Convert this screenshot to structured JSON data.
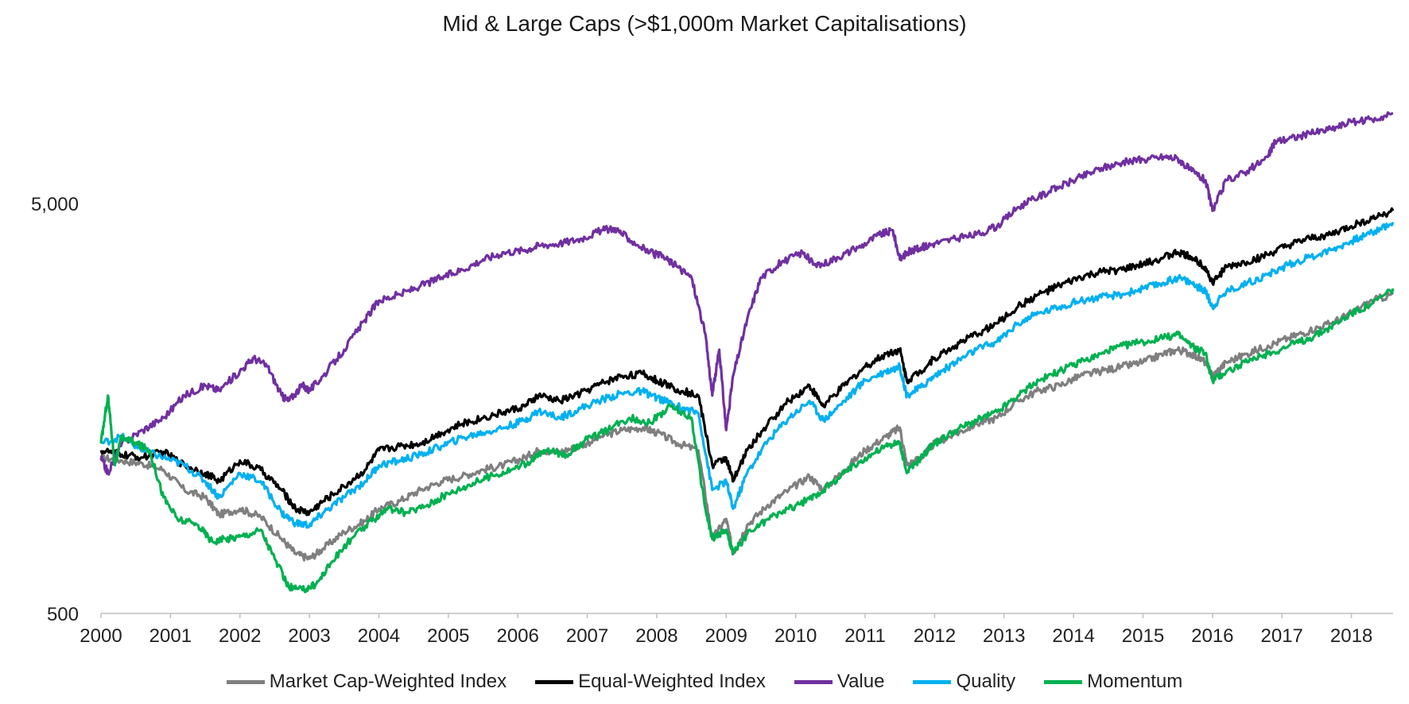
{
  "chart_data": {
    "type": "line",
    "title": "Mid & Large Caps (>$1,000m Market Capitalisations)",
    "xlabel": "",
    "ylabel": "",
    "y_scale": "log",
    "ylim": [
      500,
      12000
    ],
    "xlim": [
      2000,
      2018.6
    ],
    "x_ticks": [
      "2000",
      "2001",
      "2002",
      "2003",
      "2004",
      "2005",
      "2006",
      "2007",
      "2008",
      "2009",
      "2010",
      "2011",
      "2012",
      "2013",
      "2014",
      "2015",
      "2016",
      "2017",
      "2018"
    ],
    "y_ticks": [
      500,
      5000
    ],
    "y_tick_labels": [
      "500",
      "5,000"
    ],
    "grid": false,
    "legend_position": "bottom",
    "series": [
      {
        "name": "Market Cap-Weighted Index",
        "color": "#7f7f7f",
        "x": [
          2000.0,
          2000.3,
          2000.6,
          2000.9,
          2001.2,
          2001.5,
          2001.7,
          2002.0,
          2002.3,
          2002.6,
          2002.8,
          2003.0,
          2003.2,
          2003.5,
          2003.8,
          2004.0,
          2004.3,
          2004.6,
          2004.9,
          2005.2,
          2005.5,
          2005.8,
          2006.1,
          2006.3,
          2006.6,
          2006.9,
          2007.2,
          2007.5,
          2007.8,
          2008.0,
          2008.3,
          2008.6,
          2008.8,
          2009.0,
          2009.1,
          2009.3,
          2009.6,
          2009.9,
          2010.2,
          2010.4,
          2010.7,
          2011.0,
          2011.3,
          2011.5,
          2011.6,
          2011.8,
          2012.0,
          2012.3,
          2012.6,
          2012.9,
          2013.2,
          2013.5,
          2013.8,
          2014.1,
          2014.4,
          2014.7,
          2015.0,
          2015.3,
          2015.5,
          2015.7,
          2015.9,
          2016.0,
          2016.2,
          2016.5,
          2016.8,
          2017.1,
          2017.4,
          2017.7,
          2018.0,
          2018.3,
          2018.6
        ],
        "y": [
          1200,
          1180,
          1160,
          1120,
          1000,
          960,
          870,
          900,
          860,
          760,
          700,
          680,
          720,
          790,
          840,
          900,
          940,
          1000,
          1050,
          1080,
          1120,
          1150,
          1200,
          1250,
          1240,
          1280,
          1350,
          1400,
          1420,
          1380,
          1300,
          1250,
          760,
          850,
          700,
          820,
          920,
          1000,
          1080,
          1000,
          1120,
          1250,
          1350,
          1420,
          1150,
          1200,
          1300,
          1370,
          1450,
          1500,
          1650,
          1750,
          1800,
          1900,
          1950,
          2000,
          2050,
          2150,
          2200,
          2150,
          2050,
          1900,
          2050,
          2150,
          2250,
          2350,
          2450,
          2550,
          2700,
          2900,
          3000
        ]
      },
      {
        "name": "Equal-Weighted Index",
        "color": "#000000",
        "x": [
          2000.0,
          2000.3,
          2000.6,
          2000.9,
          2001.2,
          2001.5,
          2001.7,
          2002.0,
          2002.3,
          2002.6,
          2002.8,
          2003.0,
          2003.2,
          2003.5,
          2003.8,
          2004.0,
          2004.3,
          2004.6,
          2004.9,
          2005.2,
          2005.5,
          2005.8,
          2006.1,
          2006.3,
          2006.6,
          2006.9,
          2007.2,
          2007.5,
          2007.8,
          2008.0,
          2008.3,
          2008.6,
          2008.8,
          2009.0,
          2009.1,
          2009.3,
          2009.6,
          2009.9,
          2010.2,
          2010.4,
          2010.7,
          2011.0,
          2011.3,
          2011.5,
          2011.6,
          2011.8,
          2012.0,
          2012.3,
          2012.6,
          2012.9,
          2013.2,
          2013.5,
          2013.8,
          2014.1,
          2014.4,
          2014.7,
          2015.0,
          2015.3,
          2015.5,
          2015.7,
          2015.9,
          2016.0,
          2016.2,
          2016.5,
          2016.8,
          2017.1,
          2017.4,
          2017.7,
          2018.0,
          2018.3,
          2018.6
        ],
        "y": [
          1250,
          1220,
          1200,
          1240,
          1150,
          1100,
          1050,
          1180,
          1120,
          1000,
          900,
          880,
          940,
          1020,
          1120,
          1250,
          1280,
          1300,
          1380,
          1450,
          1500,
          1550,
          1600,
          1700,
          1650,
          1720,
          1820,
          1900,
          1920,
          1850,
          1760,
          1700,
          1150,
          1200,
          1050,
          1250,
          1450,
          1650,
          1800,
          1600,
          1800,
          2000,
          2150,
          2200,
          1850,
          1950,
          2100,
          2250,
          2400,
          2550,
          2800,
          3000,
          3150,
          3300,
          3400,
          3450,
          3550,
          3700,
          3800,
          3700,
          3500,
          3200,
          3500,
          3600,
          3750,
          3950,
          4100,
          4200,
          4400,
          4600,
          4800
        ]
      },
      {
        "name": "Value",
        "color": "#7030a0",
        "x": [
          2000.0,
          2000.1,
          2000.3,
          2000.6,
          2000.9,
          2001.2,
          2001.5,
          2001.7,
          2002.0,
          2002.2,
          2002.4,
          2002.6,
          2002.7,
          2002.9,
          2003.0,
          2003.2,
          2003.5,
          2003.8,
          2004.0,
          2004.3,
          2004.6,
          2004.9,
          2005.2,
          2005.5,
          2005.8,
          2006.1,
          2006.3,
          2006.6,
          2006.9,
          2007.2,
          2007.4,
          2007.6,
          2007.9,
          2008.1,
          2008.3,
          2008.5,
          2008.7,
          2008.8,
          2008.9,
          2009.0,
          2009.1,
          2009.3,
          2009.5,
          2009.8,
          2010.1,
          2010.3,
          2010.6,
          2010.9,
          2011.2,
          2011.4,
          2011.5,
          2011.6,
          2011.8,
          2012.0,
          2012.3,
          2012.6,
          2012.9,
          2013.2,
          2013.5,
          2013.8,
          2014.1,
          2014.4,
          2014.7,
          2015.0,
          2015.3,
          2015.5,
          2015.7,
          2015.9,
          2016.0,
          2016.2,
          2016.5,
          2016.8,
          2016.9,
          2017.1,
          2017.4,
          2017.7,
          2018.0,
          2018.3,
          2018.6
        ],
        "y": [
          1200,
          1100,
          1300,
          1400,
          1500,
          1700,
          1800,
          1750,
          1950,
          2100,
          2000,
          1700,
          1650,
          1800,
          1750,
          1900,
          2200,
          2600,
          2900,
          3000,
          3150,
          3300,
          3450,
          3650,
          3800,
          3850,
          3950,
          4000,
          4100,
          4300,
          4350,
          4100,
          3800,
          3700,
          3500,
          3300,
          2400,
          1700,
          2200,
          1400,
          1900,
          2600,
          3300,
          3600,
          3800,
          3500,
          3700,
          3900,
          4200,
          4300,
          3650,
          3800,
          3900,
          4000,
          4100,
          4200,
          4400,
          4900,
          5200,
          5500,
          5800,
          6100,
          6300,
          6400,
          6500,
          6450,
          6000,
          5700,
          4800,
          5700,
          6000,
          6500,
          7100,
          7200,
          7400,
          7600,
          7900,
          8000,
          8300
        ]
      },
      {
        "name": "Quality",
        "color": "#00b0f0",
        "x": [
          2000.0,
          2000.3,
          2000.6,
          2000.9,
          2001.2,
          2001.5,
          2001.7,
          2002.0,
          2002.3,
          2002.6,
          2002.8,
          2003.0,
          2003.2,
          2003.5,
          2003.8,
          2004.0,
          2004.3,
          2004.6,
          2004.9,
          2005.2,
          2005.5,
          2005.8,
          2006.1,
          2006.3,
          2006.6,
          2006.9,
          2007.2,
          2007.5,
          2007.8,
          2008.0,
          2008.3,
          2008.6,
          2008.8,
          2009.0,
          2009.1,
          2009.3,
          2009.6,
          2009.9,
          2010.2,
          2010.4,
          2010.7,
          2011.0,
          2011.3,
          2011.5,
          2011.6,
          2011.8,
          2012.0,
          2012.3,
          2012.6,
          2012.9,
          2013.2,
          2013.5,
          2013.8,
          2014.1,
          2014.4,
          2014.7,
          2015.0,
          2015.3,
          2015.5,
          2015.7,
          2015.9,
          2016.0,
          2016.2,
          2016.5,
          2016.8,
          2017.1,
          2017.4,
          2017.7,
          2018.0,
          2018.3,
          2018.6
        ],
        "y": [
          1300,
          1350,
          1250,
          1200,
          1150,
          1050,
          960,
          1100,
          1050,
          880,
          830,
          820,
          880,
          960,
          1050,
          1150,
          1180,
          1220,
          1280,
          1340,
          1380,
          1420,
          1480,
          1560,
          1500,
          1580,
          1660,
          1720,
          1740,
          1680,
          1600,
          1540,
          1000,
          1050,
          900,
          1100,
          1320,
          1500,
          1650,
          1480,
          1650,
          1850,
          1950,
          2000,
          1700,
          1780,
          1900,
          2050,
          2200,
          2300,
          2550,
          2700,
          2800,
          2900,
          2950,
          3000,
          3100,
          3200,
          3300,
          3200,
          3050,
          2800,
          3050,
          3200,
          3350,
          3550,
          3700,
          3850,
          4050,
          4250,
          4500
        ]
      },
      {
        "name": "Momentum",
        "color": "#00b050",
        "x": [
          2000.0,
          2000.1,
          2000.2,
          2000.3,
          2000.5,
          2000.7,
          2000.9,
          2001.1,
          2001.4,
          2001.6,
          2001.8,
          2002.0,
          2002.3,
          2002.5,
          2002.7,
          2002.9,
          2003.1,
          2003.3,
          2003.6,
          2003.9,
          2004.1,
          2004.4,
          2004.7,
          2005.0,
          2005.3,
          2005.6,
          2005.9,
          2006.2,
          2006.4,
          2006.7,
          2007.0,
          2007.3,
          2007.6,
          2007.9,
          2008.2,
          2008.5,
          2008.7,
          2008.8,
          2009.0,
          2009.1,
          2009.3,
          2009.6,
          2009.9,
          2010.2,
          2010.4,
          2010.7,
          2011.0,
          2011.3,
          2011.5,
          2011.6,
          2011.8,
          2012.0,
          2012.3,
          2012.6,
          2012.9,
          2013.2,
          2013.5,
          2013.8,
          2014.1,
          2014.4,
          2014.7,
          2015.0,
          2015.3,
          2015.5,
          2015.7,
          2015.9,
          2016.0,
          2016.2,
          2016.5,
          2016.8,
          2017.1,
          2017.4,
          2017.7,
          2018.0,
          2018.3,
          2018.6
        ],
        "y": [
          1300,
          1700,
          1150,
          1350,
          1300,
          1250,
          960,
          850,
          820,
          750,
          760,
          770,
          800,
          680,
          580,
          570,
          590,
          660,
          760,
          840,
          900,
          880,
          920,
          980,
          1030,
          1080,
          1120,
          1180,
          1250,
          1220,
          1330,
          1400,
          1500,
          1460,
          1600,
          1500,
          900,
          760,
          800,
          700,
          780,
          850,
          900,
          950,
          1000,
          1100,
          1200,
          1280,
          1300,
          1100,
          1200,
          1300,
          1400,
          1480,
          1550,
          1700,
          1850,
          1950,
          2050,
          2150,
          2250,
          2300,
          2350,
          2400,
          2250,
          2150,
          1850,
          1950,
          2050,
          2150,
          2250,
          2350,
          2500,
          2700,
          2850,
          3100
        ]
      }
    ]
  }
}
